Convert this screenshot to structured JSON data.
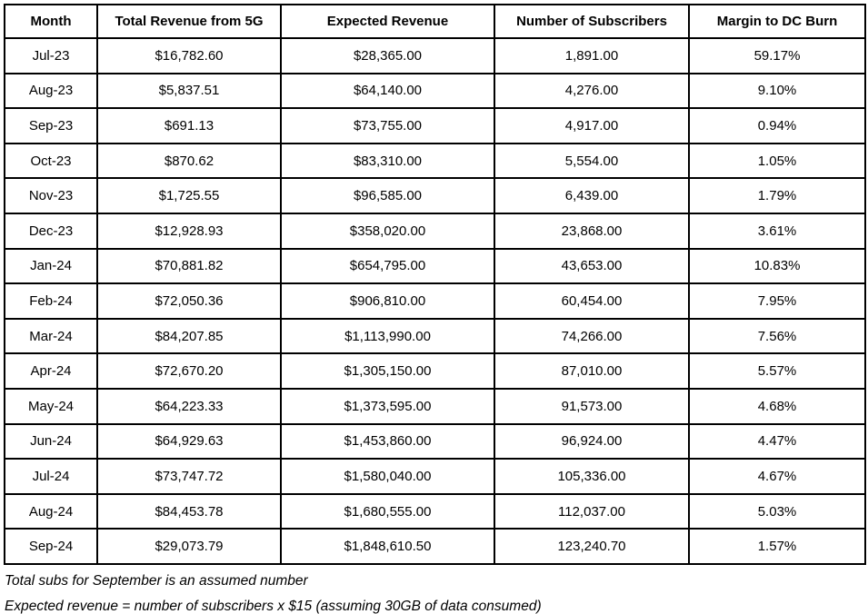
{
  "table": {
    "columns": [
      "Month",
      "Total Revenue from 5G",
      "Expected Revenue",
      "Number of Subscribers",
      "Margin to DC Burn"
    ],
    "rows": [
      [
        "Jul-23",
        "$16,782.60",
        "$28,365.00",
        "1,891.00",
        "59.17%"
      ],
      [
        "Aug-23",
        "$5,837.51",
        "$64,140.00",
        "4,276.00",
        "9.10%"
      ],
      [
        "Sep-23",
        "$691.13",
        "$73,755.00",
        "4,917.00",
        "0.94%"
      ],
      [
        "Oct-23",
        "$870.62",
        "$83,310.00",
        "5,554.00",
        "1.05%"
      ],
      [
        "Nov-23",
        "$1,725.55",
        "$96,585.00",
        "6,439.00",
        "1.79%"
      ],
      [
        "Dec-23",
        "$12,928.93",
        "$358,020.00",
        "23,868.00",
        "3.61%"
      ],
      [
        "Jan-24",
        "$70,881.82",
        "$654,795.00",
        "43,653.00",
        "10.83%"
      ],
      [
        "Feb-24",
        "$72,050.36",
        "$906,810.00",
        "60,454.00",
        "7.95%"
      ],
      [
        "Mar-24",
        "$84,207.85",
        "$1,113,990.00",
        "74,266.00",
        "7.56%"
      ],
      [
        "Apr-24",
        "$72,670.20",
        "$1,305,150.00",
        "87,010.00",
        "5.57%"
      ],
      [
        "May-24",
        "$64,223.33",
        "$1,373,595.00",
        "91,573.00",
        "4.68%"
      ],
      [
        "Jun-24",
        "$64,929.63",
        "$1,453,860.00",
        "96,924.00",
        "4.47%"
      ],
      [
        "Jul-24",
        "$73,747.72",
        "$1,580,040.00",
        "105,336.00",
        "4.67%"
      ],
      [
        "Aug-24",
        "$84,453.78",
        "$1,680,555.00",
        "112,037.00",
        "5.03%"
      ],
      [
        "Sep-24",
        "$29,073.79",
        "$1,848,610.50",
        "123,240.70",
        "1.57%"
      ]
    ]
  },
  "chart_data": {
    "type": "table",
    "title": "",
    "categories": [
      "Jul-23",
      "Aug-23",
      "Sep-23",
      "Oct-23",
      "Nov-23",
      "Dec-23",
      "Jan-24",
      "Feb-24",
      "Mar-24",
      "Apr-24",
      "May-24",
      "Jun-24",
      "Jul-24",
      "Aug-24",
      "Sep-24"
    ],
    "series": [
      {
        "name": "Total Revenue from 5G",
        "values": [
          16782.6,
          5837.51,
          691.13,
          870.62,
          1725.55,
          12928.93,
          70881.82,
          72050.36,
          84207.85,
          72670.2,
          64223.33,
          64929.63,
          73747.72,
          84453.78,
          29073.79
        ]
      },
      {
        "name": "Expected Revenue",
        "values": [
          28365.0,
          64140.0,
          73755.0,
          83310.0,
          96585.0,
          358020.0,
          654795.0,
          906810.0,
          1113990.0,
          1305150.0,
          1373595.0,
          1453860.0,
          1580040.0,
          1680555.0,
          1848610.5
        ]
      },
      {
        "name": "Number of Subscribers",
        "values": [
          1891.0,
          4276.0,
          4917.0,
          5554.0,
          6439.0,
          23868.0,
          43653.0,
          60454.0,
          74266.0,
          87010.0,
          91573.0,
          96924.0,
          105336.0,
          112037.0,
          123240.7
        ]
      },
      {
        "name": "Margin to DC Burn",
        "values": [
          59.17,
          9.1,
          0.94,
          1.05,
          1.79,
          3.61,
          10.83,
          7.95,
          7.56,
          5.57,
          4.68,
          4.47,
          4.67,
          5.03,
          1.57
        ]
      }
    ]
  },
  "footnotes": [
    "Total subs for September is an assumed number",
    "Expected revenue = number of subscribers x $15 (assuming 30GB of data consumed)"
  ]
}
